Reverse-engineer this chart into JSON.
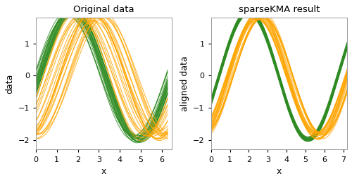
{
  "title_left": "Original data",
  "title_right": "sparseKMA result",
  "xlabel": "x",
  "ylabel_left": "data",
  "ylabel_right": "aligned data",
  "xlim_left": [
    0,
    6.5
  ],
  "ylim_left": [
    -2.3,
    1.8
  ],
  "xlim_right": [
    0,
    7.2
  ],
  "ylim_right": [
    -2.3,
    1.8
  ],
  "orange_color": "#FFA500",
  "green_color": "#2E8B22",
  "n_green": 22,
  "n_orange": 22,
  "alpha": 0.75,
  "lw": 0.8,
  "background_color": "#ffffff",
  "tick_fontsize": 8,
  "label_fontsize": 9,
  "title_fontsize": 9.5,
  "xticks_left": [
    0,
    1,
    2,
    3,
    4,
    5,
    6
  ],
  "xticks_right": [
    0,
    1,
    2,
    3,
    4,
    5,
    6,
    7
  ],
  "yticks": [
    -2,
    -1,
    0,
    1
  ]
}
